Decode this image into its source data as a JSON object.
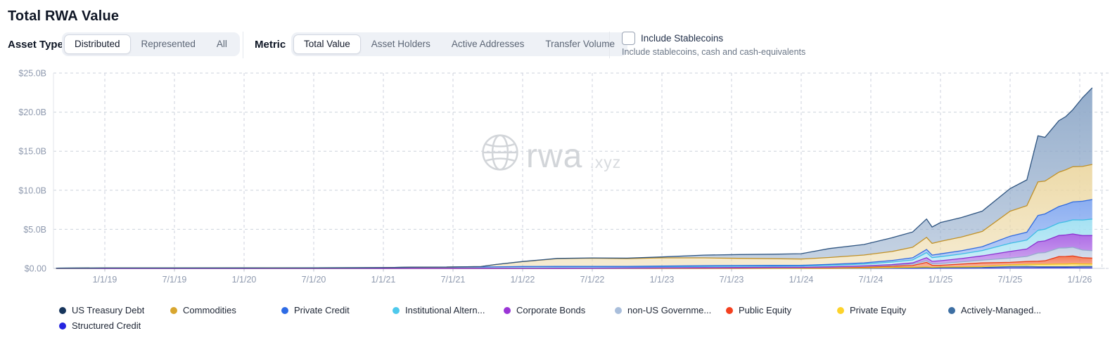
{
  "title": "Total RWA Value",
  "controls": {
    "asset_type": {
      "label": "Asset Type",
      "options": [
        "Distributed",
        "Represented",
        "All"
      ],
      "selected": "Distributed"
    },
    "metric": {
      "label": "Metric",
      "options": [
        "Total Value",
        "Asset Holders",
        "Active Addresses",
        "Transfer Volume"
      ],
      "selected": "Total Value"
    },
    "stablecoins": {
      "label": "Include Stablecoins",
      "sublabel": "Include stablecoins, cash and cash-equivalents",
      "checked": false
    }
  },
  "watermark": {
    "text": "rwa",
    "suffix": ".xyz"
  },
  "ui_colors": {
    "grid": "#ccd2dc",
    "axis_text": "#8e99ae",
    "group_bg": "#eef1f6",
    "active_pill_border": "#d3d8e1",
    "watermark": "#d2d5d9"
  },
  "chart_data": {
    "type": "area",
    "stacked": true,
    "title": "Total RWA Value",
    "unit": "USD billions",
    "x_unit": "decimal_year",
    "grid": "dashed",
    "legend_position": "bottom",
    "stack_note": "stacked bottom-to-top in reverse legend order (Structured Credit bottom, US Treasury Debt top)",
    "ylim": [
      0,
      25
    ],
    "xlim": [
      2018.63,
      2026.16
    ],
    "y_ticks": {
      "labels": [
        "$0.00",
        "$5.0B",
        "$10.0B",
        "$15.0B",
        "$20.0B",
        "$25.0B"
      ],
      "values": [
        0,
        5,
        10,
        15,
        20,
        25
      ]
    },
    "x_ticks": {
      "labels": [
        "1/1/19",
        "7/1/19",
        "1/1/20",
        "7/1/20",
        "1/1/21",
        "7/1/21",
        "1/1/22",
        "7/1/22",
        "1/1/23",
        "7/1/23",
        "1/1/24",
        "7/1/24",
        "1/1/25",
        "7/1/25",
        "1/1/26"
      ],
      "values": [
        2019.0,
        2019.5,
        2020.0,
        2020.5,
        2021.0,
        2021.5,
        2022.0,
        2022.5,
        2023.0,
        2023.5,
        2024.0,
        2024.5,
        2025.0,
        2025.5,
        2026.0
      ]
    },
    "x": [
      2018.65,
      2019.0,
      2019.5,
      2020.0,
      2020.5,
      2021.0,
      2021.2,
      2021.45,
      2021.7,
      2021.8,
      2022.0,
      2022.25,
      2022.5,
      2022.75,
      2023.0,
      2023.3,
      2023.55,
      2023.8,
      2024.0,
      2024.2,
      2024.45,
      2024.65,
      2024.8,
      2024.9,
      2024.94,
      2025.0,
      2025.15,
      2025.3,
      2025.5,
      2025.62,
      2025.7,
      2025.75,
      2025.85,
      2025.9,
      2025.95,
      2026.02,
      2026.09
    ],
    "series": [
      {
        "name": "US Treasury Debt",
        "color": "#2e5480",
        "dot": "#17355c",
        "fill": "#8fa9c9",
        "values": [
          0,
          0,
          0,
          0,
          0,
          0,
          0,
          0,
          0,
          0,
          0.02,
          0.03,
          0.04,
          0.06,
          0.12,
          0.35,
          0.48,
          0.58,
          0.68,
          1.15,
          1.35,
          1.75,
          1.95,
          2.35,
          2.1,
          2.4,
          2.5,
          2.6,
          2.9,
          3.3,
          5.9,
          5.6,
          6.6,
          6.8,
          7.3,
          8.8,
          9.8
        ]
      },
      {
        "name": "Commodities",
        "color": "#c19127",
        "dot": "#d8a62f",
        "fill": "#ecd8a4",
        "values": [
          0,
          0,
          0,
          0,
          0,
          0,
          0,
          0,
          0.05,
          0.3,
          0.62,
          1.0,
          1.05,
          1.0,
          1.05,
          1.0,
          0.92,
          0.85,
          0.8,
          0.88,
          1.0,
          1.15,
          1.35,
          1.55,
          1.5,
          1.6,
          1.75,
          1.95,
          3.2,
          3.4,
          4.3,
          4.2,
          4.4,
          4.45,
          4.5,
          4.45,
          4.5
        ]
      },
      {
        "name": "Private Credit",
        "color": "#2f6ae0",
        "dot": "#2e6be5",
        "fill": "#84a9f0",
        "values": [
          0,
          0,
          0,
          0,
          0,
          0,
          0,
          0,
          0,
          0,
          0.03,
          0.05,
          0.05,
          0.06,
          0.08,
          0.1,
          0.1,
          0.1,
          0.1,
          0.12,
          0.14,
          0.2,
          0.28,
          0.4,
          0.32,
          0.36,
          0.42,
          0.5,
          0.9,
          1.0,
          1.9,
          1.95,
          2.1,
          2.2,
          2.3,
          2.4,
          2.5
        ]
      },
      {
        "name": "Institutional Altern...",
        "color": "#3ebde4",
        "dot": "#4ec9ec",
        "fill": "#a0e0f2",
        "values": [
          0.04,
          0.05,
          0.05,
          0.06,
          0.07,
          0.1,
          0.15,
          0.17,
          0.18,
          0.19,
          0.2,
          0.18,
          0.16,
          0.14,
          0.13,
          0.14,
          0.15,
          0.15,
          0.16,
          0.19,
          0.25,
          0.32,
          0.38,
          0.65,
          0.48,
          0.52,
          0.58,
          0.68,
          1.05,
          1.15,
          1.45,
          1.5,
          1.6,
          1.7,
          1.8,
          2.0,
          2.1
        ]
      },
      {
        "name": "Corporate Bonds",
        "color": "#8c2fd0",
        "dot": "#9a35d6",
        "fill": "#a964e4",
        "values": [
          0,
          0,
          0,
          0,
          0,
          0,
          0,
          0,
          0,
          0,
          0.01,
          0.02,
          0.02,
          0.02,
          0.02,
          0.03,
          0.03,
          0.03,
          0.03,
          0.05,
          0.07,
          0.1,
          0.15,
          0.38,
          0.3,
          0.36,
          0.42,
          0.55,
          0.85,
          0.95,
          1.45,
          1.5,
          1.6,
          1.65,
          1.7,
          1.85,
          1.95
        ]
      },
      {
        "name": "non-US Governme...",
        "color": "#96abce",
        "dot": "#a9bedb",
        "fill": "#c3cfe4",
        "values": [
          0,
          0,
          0,
          0,
          0,
          0,
          0,
          0,
          0,
          0,
          0,
          0,
          0.02,
          0.03,
          0.04,
          0.05,
          0.05,
          0.06,
          0.06,
          0.07,
          0.09,
          0.12,
          0.18,
          0.22,
          0.2,
          0.22,
          0.28,
          0.35,
          0.55,
          0.65,
          1.05,
          1.05,
          1.1,
          1.1,
          1.12,
          0.98,
          0.95
        ]
      },
      {
        "name": "Public Equity",
        "color": "#e83d1a",
        "dot": "#f4401f",
        "fill": "#f3734d",
        "values": [
          0,
          0,
          0,
          0,
          0,
          0,
          0,
          0,
          0,
          0,
          0,
          0,
          0,
          0,
          0.03,
          0.03,
          0.04,
          0.05,
          0.05,
          0.06,
          0.1,
          0.16,
          0.22,
          0.58,
          0.26,
          0.22,
          0.36,
          0.46,
          0.32,
          0.36,
          0.4,
          0.45,
          0.95,
          0.97,
          1.0,
          0.8,
          0.75
        ]
      },
      {
        "name": "Private Equity",
        "color": "#eec41c",
        "dot": "#fdd32b",
        "fill": "#fbdf74",
        "values": [
          0,
          0,
          0,
          0,
          0,
          0,
          0,
          0,
          0,
          0,
          0,
          0,
          0,
          0,
          0,
          0,
          0,
          0,
          0,
          0.02,
          0.04,
          0.06,
          0.08,
          0.1,
          0.07,
          0.1,
          0.11,
          0.13,
          0.22,
          0.26,
          0.3,
          0.3,
          0.34,
          0.35,
          0.37,
          0.33,
          0.32
        ]
      },
      {
        "name": "Actively-Managed...",
        "color": "#3d6fa3",
        "dot": "#3d6fa3",
        "fill": "#9fb7d2",
        "values": [
          0,
          0,
          0,
          0,
          0,
          0,
          0,
          0,
          0,
          0,
          0,
          0,
          0,
          0,
          0,
          0,
          0,
          0,
          0,
          0,
          0.02,
          0.04,
          0.05,
          0.06,
          0.05,
          0.05,
          0.06,
          0.07,
          0.18,
          0.2,
          0.16,
          0.15,
          0.15,
          0.14,
          0.14,
          0.18,
          0.18
        ]
      },
      {
        "name": "Structured Credit",
        "color": "#2828d8",
        "dot": "#2525e0",
        "fill": "#7070e8",
        "values": [
          0,
          0,
          0,
          0,
          0,
          0,
          0,
          0,
          0,
          0,
          0,
          0,
          0,
          0,
          0,
          0,
          0,
          0,
          0,
          0,
          0,
          0.01,
          0.02,
          0.03,
          0.02,
          0.03,
          0.03,
          0.04,
          0.05,
          0.06,
          0.06,
          0.07,
          0.07,
          0.07,
          0.08,
          0.06,
          0.06
        ]
      }
    ]
  }
}
